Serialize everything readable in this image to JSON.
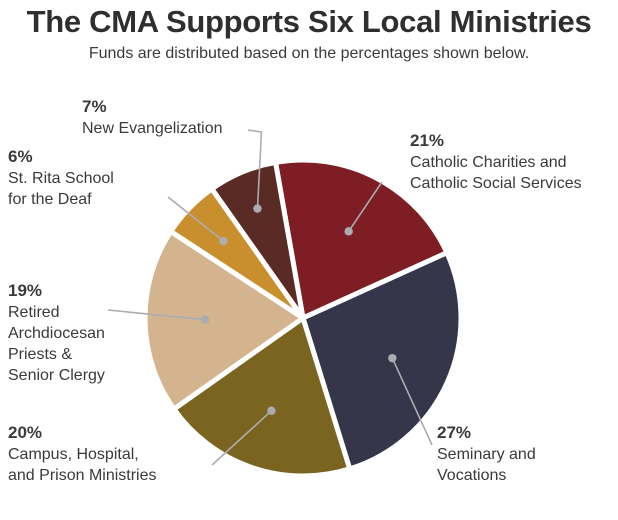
{
  "title": "The CMA Supports Six Local Ministries",
  "subtitle": "Funds are distributed based on the percentages shown below.",
  "chart_data": {
    "type": "pie",
    "title": "The CMA Supports Six Local Ministries",
    "subtitle": "Funds are distributed based on the percentages shown below.",
    "slices": [
      {
        "label": "Catholic Charities and Catholic Social Services",
        "value": 21,
        "value_label": "21%",
        "color": "#7e1e24"
      },
      {
        "label": "Seminary and Vocations",
        "value": 27,
        "value_label": "27%",
        "color": "#35364a"
      },
      {
        "label": "Campus, Hospital, and Prison Ministries",
        "value": 20,
        "value_label": "20%",
        "color": "#7a6420"
      },
      {
        "label": "Retired Archdiocesan Priests & Senior Clergy",
        "value": 19,
        "value_label": "19%",
        "color": "#d3b48e"
      },
      {
        "label": "St. Rita School for the Deaf",
        "value": 6,
        "value_label": "6%",
        "color": "#c88f2c"
      },
      {
        "label": "New Evangelization",
        "value": 7,
        "value_label": "7%",
        "color": "#5a2a24"
      }
    ]
  },
  "labels": [
    {
      "pct": "21%",
      "lines": [
        "Catholic Charities and",
        "Catholic Social Services"
      ]
    },
    {
      "pct": "27%",
      "lines": [
        "Seminary and",
        "Vocations"
      ]
    },
    {
      "pct": "20%",
      "lines": [
        "Campus, Hospital,",
        "and Prison Ministries"
      ]
    },
    {
      "pct": "19%",
      "lines": [
        "Retired",
        "Archdiocesan",
        "Priests &",
        "Senior Clergy"
      ]
    },
    {
      "pct": "6%",
      "lines": [
        "St. Rita School",
        "for the Deaf"
      ]
    },
    {
      "pct": "7%",
      "lines": [
        "New Evangelization"
      ]
    }
  ]
}
